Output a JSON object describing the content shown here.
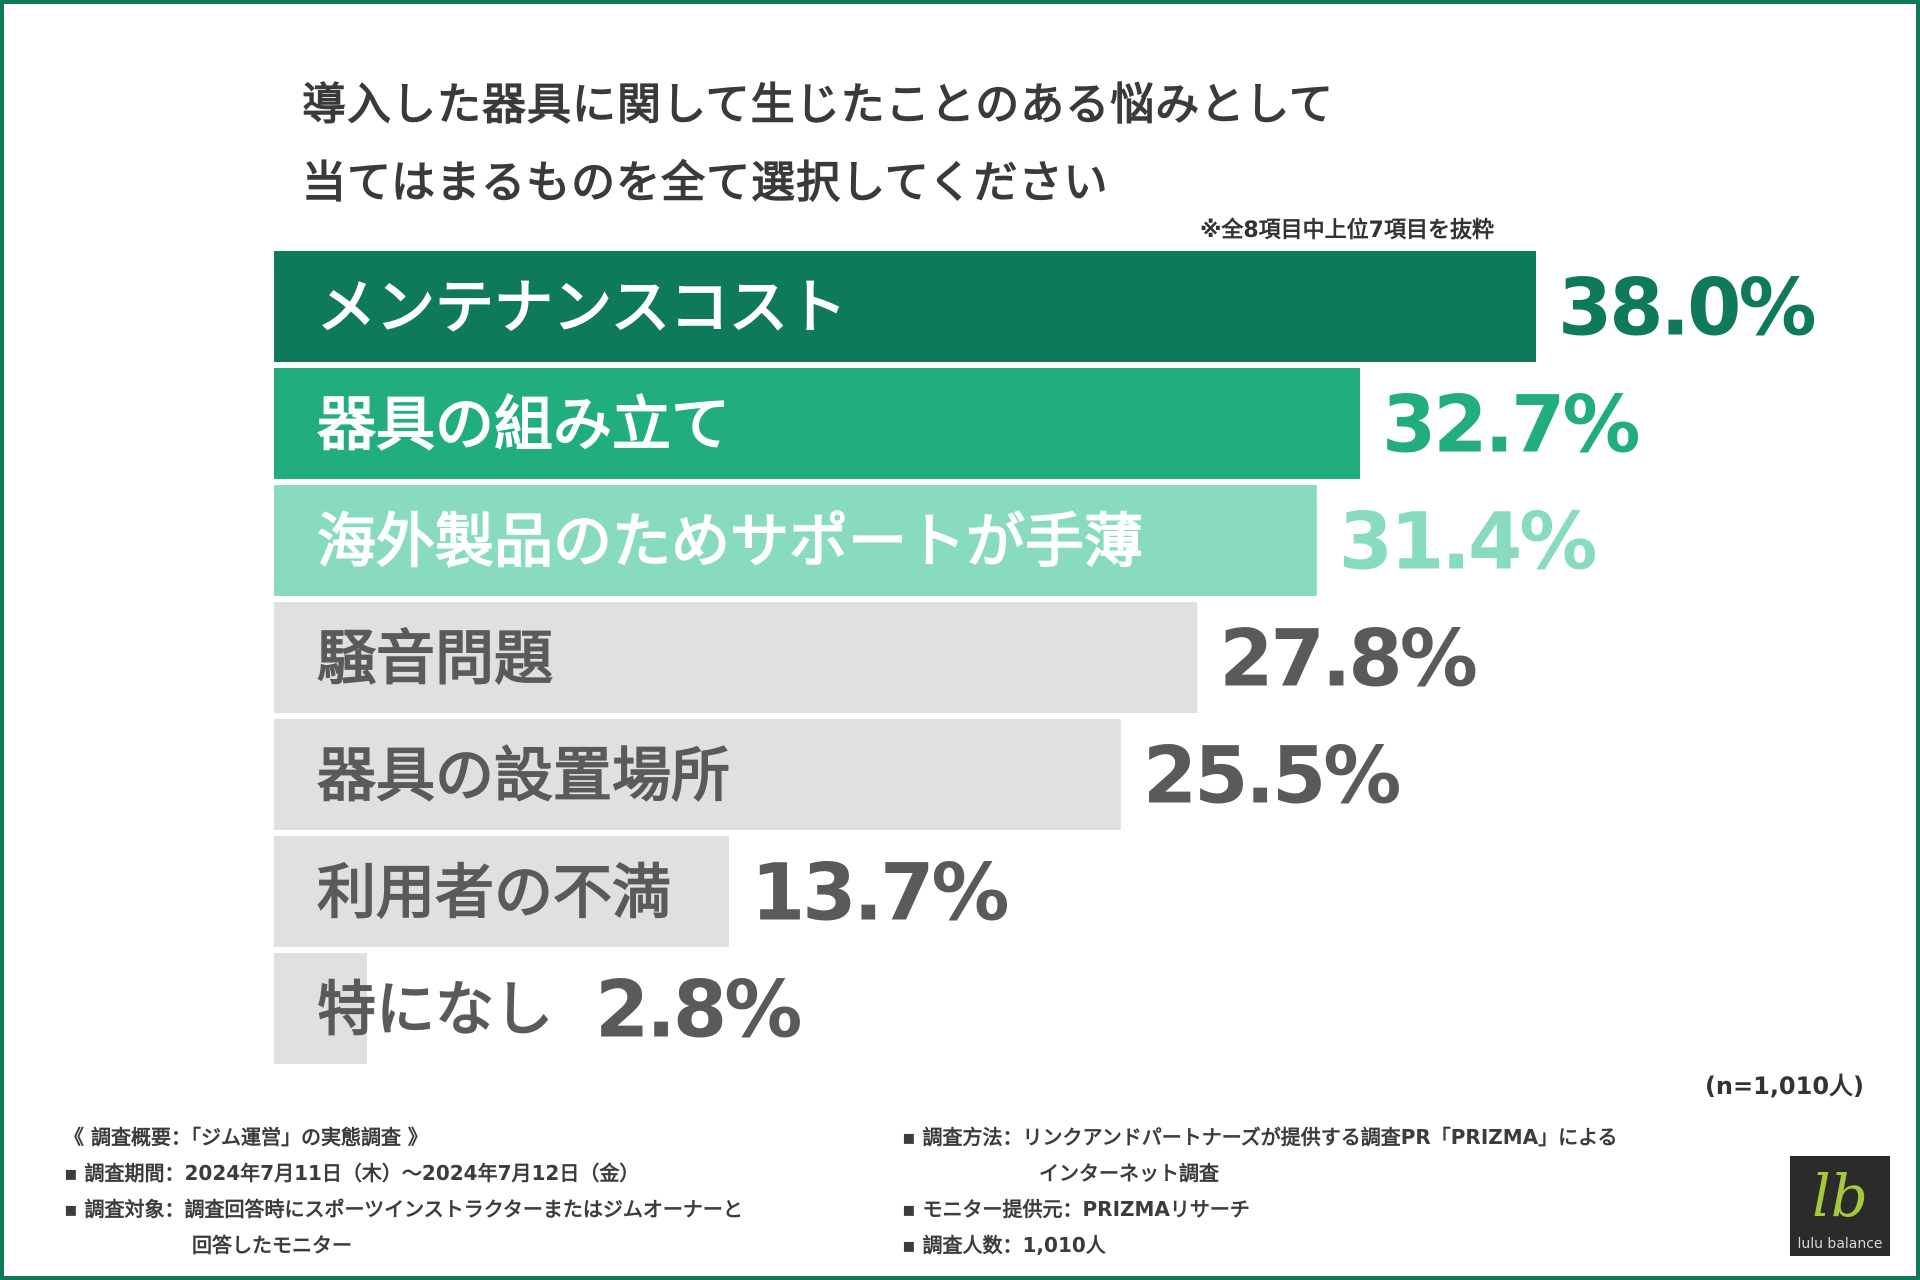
{
  "title": {
    "line1": "導入した器具に関して生じたことのある悩みとして",
    "line2": "当てはまるものを全て選択してください"
  },
  "note": "※全8項目中上位7項目を抜粋",
  "sample_size": "(n=1,010人)",
  "colors": {
    "rank1": "#0f7a5b",
    "rank2": "#22ad80",
    "rank3": "#88dbc0",
    "rest": "#e0e0e0",
    "rest_text": "#5a5a5a",
    "frame": "#0f7a5b"
  },
  "chart_data": {
    "type": "bar",
    "orientation": "horizontal",
    "categories": [
      "メンテナンスコスト",
      "器具の組み立て",
      "海外製品のためサポートが手薄",
      "騒音問題",
      "器具の設置場所",
      "利用者の不満",
      "特になし"
    ],
    "values": [
      38.0,
      32.7,
      31.4,
      27.8,
      25.5,
      13.7,
      2.8
    ],
    "value_labels": [
      "38.0%",
      "32.7%",
      "31.4%",
      "27.8%",
      "25.5%",
      "13.7%",
      "2.8%"
    ],
    "unit": "%",
    "xlim": [
      0,
      38.0
    ],
    "grid": false,
    "legend": "none"
  },
  "footer": {
    "left": [
      "《 調査概要：「ジム運営」の実態調査 》",
      "▪ 調査期間：2024年7月11日（木）〜2024年7月12日（金）",
      "▪ 調査対象：調査回答時にスポーツインストラクターまたはジムオーナーと",
      "回答したモニター"
    ],
    "right": [
      "▪ 調査方法：リンクアンドパートナーズが提供する調査PR「PRIZMA」による",
      "インターネット調査",
      "▪ モニター提供元：PRIZMAリサーチ",
      "▪ 調査人数：1,010人"
    ]
  },
  "logo": {
    "mark": "lb",
    "text": "lulu balance"
  }
}
